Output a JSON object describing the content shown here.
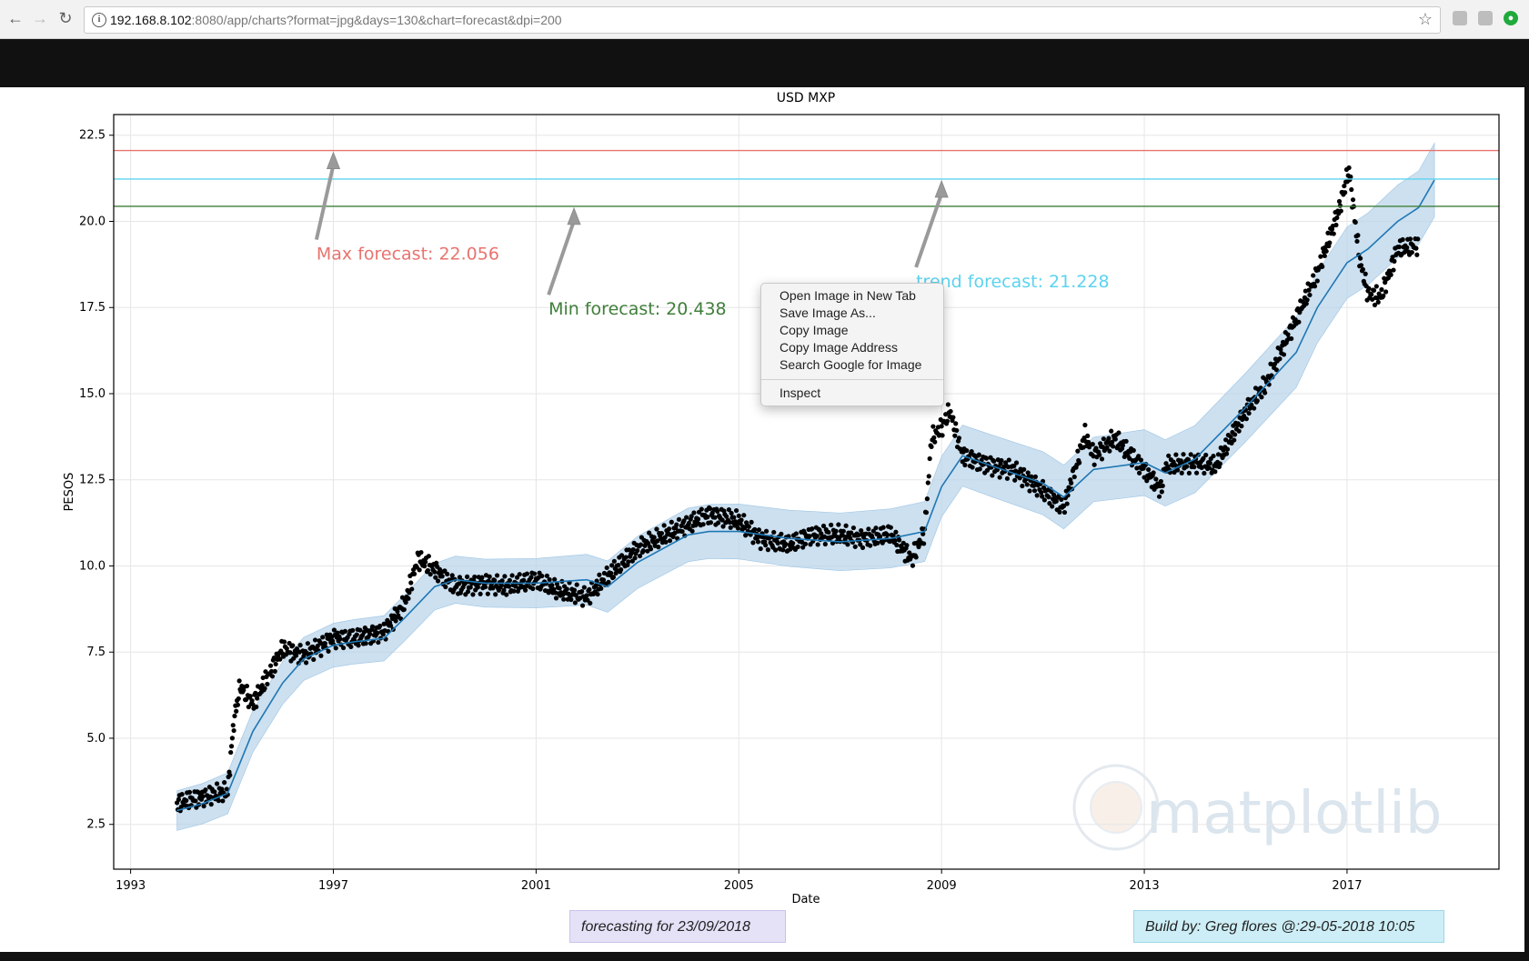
{
  "browser": {
    "url_host": "192.168.8.102",
    "url_rest": ":8080/app/charts?format=jpg&days=130&chart=forecast&dpi=200",
    "back_icon": "←",
    "forward_icon": "→",
    "reload_icon": "↻",
    "star_icon": "☆"
  },
  "colors": {
    "max_line": "#e8736f",
    "min_line": "#3f7f3a",
    "trend_line": "#5bd3ee",
    "band": "#b7d3ea",
    "forecast_line": "#1f77b4",
    "points": "#000000"
  },
  "chart_data": {
    "type": "line",
    "title": "USD MXP",
    "xlabel": "Date",
    "ylabel": "PESOS",
    "xlim": [
      "1992-09-01",
      "2020-01-01"
    ],
    "ylim": [
      1.2,
      23.1
    ],
    "x_ticks": [
      "1993",
      "1997",
      "2001",
      "2005",
      "2009",
      "2013",
      "2017"
    ],
    "y_ticks": [
      "2.5",
      "5.0",
      "7.5",
      "10.0",
      "12.5",
      "15.0",
      "17.5",
      "20.0",
      "22.5"
    ],
    "grid": true,
    "watermark": "matplotlib",
    "hlines": [
      {
        "value": 22.056,
        "label": "Max forecast:  22.056",
        "color": "#e8736f"
      },
      {
        "value": 21.228,
        "label": "trend forecast:  21.228",
        "color": "#5bd3ee"
      },
      {
        "value": 20.438,
        "label": "Min forecast:  20.438",
        "color": "#3f7f3a"
      }
    ],
    "series": [
      {
        "kind": "observed",
        "x": [
          "1993-12-01",
          "1994-06-01",
          "1994-12-01",
          "1995-01-15",
          "1995-03-01",
          "1995-06-01",
          "1995-10-01",
          "1996-01-01",
          "1996-06-01",
          "1997-01-01",
          "1997-06-01",
          "1998-01-01",
          "1998-06-01",
          "1998-09-01",
          "1999-01-01",
          "1999-06-01",
          "2000-01-01",
          "2000-06-01",
          "2001-01-01",
          "2001-06-01",
          "2002-01-01",
          "2002-06-01",
          "2003-01-01",
          "2003-06-01",
          "2004-01-01",
          "2004-06-01",
          "2005-01-01",
          "2005-06-01",
          "2006-01-01",
          "2006-06-01",
          "2007-01-01",
          "2007-06-01",
          "2008-01-01",
          "2008-06-01",
          "2008-09-01",
          "2008-10-20",
          "2009-01-01",
          "2009-03-01",
          "2009-06-01",
          "2010-01-01",
          "2010-06-01",
          "2011-01-01",
          "2011-06-01",
          "2011-11-01",
          "2012-01-01",
          "2012-06-01",
          "2013-01-01",
          "2013-05-01",
          "2013-06-01",
          "2014-01-01",
          "2014-06-01",
          "2015-01-01",
          "2015-06-01",
          "2016-01-01",
          "2016-06-01",
          "2016-11-01",
          "2017-01-15",
          "2017-04-01",
          "2017-06-01",
          "2017-09-01",
          "2018-01-01",
          "2018-06-01"
        ],
        "y": [
          3.1,
          3.3,
          3.45,
          5.5,
          6.5,
          6.0,
          6.9,
          7.6,
          7.4,
          7.9,
          7.9,
          8.1,
          8.9,
          10.2,
          9.9,
          9.4,
          9.5,
          9.4,
          9.6,
          9.3,
          9.1,
          9.7,
          10.5,
          10.8,
          11.2,
          11.5,
          11.3,
          10.8,
          10.6,
          10.9,
          10.9,
          10.8,
          10.9,
          10.2,
          11.0,
          13.7,
          14.0,
          14.5,
          13.2,
          12.9,
          12.8,
          12.2,
          11.7,
          13.8,
          13.2,
          13.7,
          12.8,
          12.2,
          12.9,
          13.0,
          12.9,
          14.5,
          15.3,
          17.2,
          18.5,
          20.3,
          21.5,
          18.9,
          17.9,
          17.8,
          19.2,
          19.3
        ]
      },
      {
        "kind": "trend",
        "x": [
          "1993-12-01",
          "1994-06-01",
          "1994-12-01",
          "1995-06-01",
          "1996-01-01",
          "1996-06-01",
          "1997-01-01",
          "1997-06-01",
          "1998-01-01",
          "1998-06-01",
          "1999-01-01",
          "1999-06-01",
          "2000-01-01",
          "2001-01-01",
          "2002-01-01",
          "2002-06-01",
          "2003-01-01",
          "2004-01-01",
          "2004-06-01",
          "2005-01-01",
          "2006-01-01",
          "2007-01-01",
          "2008-01-01",
          "2008-09-01",
          "2009-01-01",
          "2009-06-01",
          "2010-01-01",
          "2011-01-01",
          "2011-06-01",
          "2012-01-01",
          "2013-01-01",
          "2013-06-01",
          "2014-01-01",
          "2015-01-01",
          "2016-01-01",
          "2016-06-01",
          "2017-01-01",
          "2017-06-01",
          "2018-01-01",
          "2018-06-01",
          "2018-09-23"
        ],
        "y": [
          2.9,
          3.1,
          3.4,
          5.2,
          6.6,
          7.3,
          7.7,
          7.8,
          7.9,
          8.5,
          9.4,
          9.6,
          9.5,
          9.5,
          9.6,
          9.4,
          10.1,
          10.9,
          11.0,
          11.0,
          10.8,
          10.7,
          10.8,
          11.0,
          12.3,
          13.2,
          12.9,
          12.4,
          12.0,
          12.8,
          13.0,
          12.7,
          13.1,
          14.6,
          16.2,
          17.5,
          18.8,
          19.2,
          20.0,
          20.4,
          21.2
        ]
      }
    ]
  },
  "context_menu": {
    "items": [
      "Open Image in New Tab",
      "Save Image As...",
      "Copy Image",
      "Copy Image Address",
      "Search Google for Image"
    ],
    "inspect": "Inspect"
  },
  "footer": {
    "forecast_label": "forecasting for   23/09/2018",
    "build_label": "Build by: Greg flores @:29-05-2018 10:05"
  }
}
